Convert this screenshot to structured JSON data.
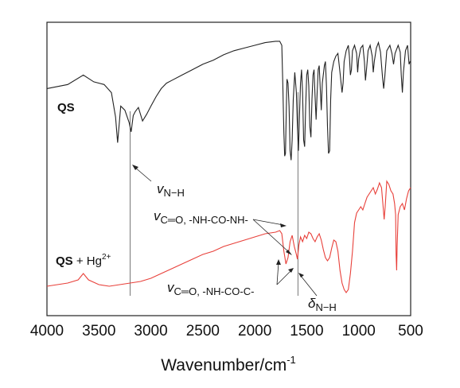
{
  "chart_data": {
    "type": "line",
    "xlabel": "Wavenumber/cm",
    "xlabel_superscript": "-1",
    "x_reversed": true,
    "xlim": [
      4000,
      500
    ],
    "xticks": [
      "4000",
      "3500",
      "3000",
      "2500",
      "2000",
      "1500",
      "1000",
      "500"
    ],
    "yticks_shown": false,
    "series": [
      {
        "name_bold": "QS",
        "name_rest": "",
        "color": "#222222",
        "points": [
          [
            4000,
            0.58
          ],
          [
            3800,
            0.61
          ],
          [
            3650,
            0.68
          ],
          [
            3550,
            0.63
          ],
          [
            3450,
            0.61
          ],
          [
            3380,
            0.55
          ],
          [
            3340,
            0.37
          ],
          [
            3320,
            0.18
          ],
          [
            3290,
            0.45
          ],
          [
            3250,
            0.42
          ],
          [
            3210,
            0.33
          ],
          [
            3190,
            0.26
          ],
          [
            3170,
            0.38
          ],
          [
            3150,
            0.41
          ],
          [
            3120,
            0.44
          ],
          [
            3080,
            0.34
          ],
          [
            3040,
            0.39
          ],
          [
            3000,
            0.45
          ],
          [
            2950,
            0.52
          ],
          [
            2900,
            0.58
          ],
          [
            2850,
            0.62
          ],
          [
            2800,
            0.64
          ],
          [
            2700,
            0.68
          ],
          [
            2600,
            0.72
          ],
          [
            2500,
            0.76
          ],
          [
            2400,
            0.79
          ],
          [
            2300,
            0.83
          ],
          [
            2200,
            0.86
          ],
          [
            2100,
            0.88
          ],
          [
            2000,
            0.9
          ],
          [
            1900,
            0.92
          ],
          [
            1800,
            0.93
          ],
          [
            1760,
            0.93
          ],
          [
            1740,
            0.9
          ],
          [
            1730,
            0.6
          ],
          [
            1720,
            0.25
          ],
          [
            1712,
            0.08
          ],
          [
            1705,
            0.1
          ],
          [
            1695,
            0.5
          ],
          [
            1690,
            0.65
          ],
          [
            1680,
            0.62
          ],
          [
            1670,
            0.45
          ],
          [
            1660,
            0.12
          ],
          [
            1650,
            0.05
          ],
          [
            1640,
            0.2
          ],
          [
            1630,
            0.5
          ],
          [
            1615,
            0.7
          ],
          [
            1600,
            0.55
          ],
          [
            1590,
            0.3
          ],
          [
            1580,
            0.12
          ],
          [
            1570,
            0.38
          ],
          [
            1560,
            0.62
          ],
          [
            1550,
            0.72
          ],
          [
            1540,
            0.55
          ],
          [
            1530,
            0.2
          ],
          [
            1520,
            0.15
          ],
          [
            1510,
            0.45
          ],
          [
            1500,
            0.68
          ],
          [
            1490,
            0.72
          ],
          [
            1480,
            0.6
          ],
          [
            1470,
            0.3
          ],
          [
            1460,
            0.22
          ],
          [
            1450,
            0.5
          ],
          [
            1440,
            0.68
          ],
          [
            1430,
            0.72
          ],
          [
            1420,
            0.52
          ],
          [
            1410,
            0.35
          ],
          [
            1400,
            0.55
          ],
          [
            1390,
            0.72
          ],
          [
            1380,
            0.75
          ],
          [
            1370,
            0.58
          ],
          [
            1360,
            0.42
          ],
          [
            1350,
            0.62
          ],
          [
            1330,
            0.75
          ],
          [
            1320,
            0.78
          ],
          [
            1310,
            0.6
          ],
          [
            1300,
            0.3
          ],
          [
            1290,
            0.1
          ],
          [
            1280,
            0.12
          ],
          [
            1270,
            0.5
          ],
          [
            1260,
            0.7
          ],
          [
            1240,
            0.78
          ],
          [
            1220,
            0.82
          ],
          [
            1200,
            0.84
          ],
          [
            1180,
            0.7
          ],
          [
            1160,
            0.55
          ],
          [
            1150,
            0.62
          ],
          [
            1140,
            0.78
          ],
          [
            1120,
            0.86
          ],
          [
            1100,
            0.9
          ],
          [
            1090,
            0.82
          ],
          [
            1080,
            0.68
          ],
          [
            1070,
            0.72
          ],
          [
            1060,
            0.86
          ],
          [
            1040,
            0.9
          ],
          [
            1020,
            0.84
          ],
          [
            1010,
            0.7
          ],
          [
            1000,
            0.8
          ],
          [
            980,
            0.88
          ],
          [
            960,
            0.9
          ],
          [
            945,
            0.78
          ],
          [
            935,
            0.64
          ],
          [
            925,
            0.72
          ],
          [
            910,
            0.86
          ],
          [
            890,
            0.9
          ],
          [
            870,
            0.82
          ],
          [
            860,
            0.7
          ],
          [
            850,
            0.78
          ],
          [
            830,
            0.88
          ],
          [
            810,
            0.92
          ],
          [
            790,
            0.85
          ],
          [
            770,
            0.66
          ],
          [
            760,
            0.58
          ],
          [
            750,
            0.66
          ],
          [
            730,
            0.86
          ],
          [
            700,
            0.9
          ],
          [
            680,
            0.84
          ],
          [
            665,
            0.76
          ],
          [
            650,
            0.84
          ],
          [
            620,
            0.9
          ],
          [
            600,
            0.85
          ],
          [
            590,
            0.68
          ],
          [
            580,
            0.55
          ],
          [
            570,
            0.7
          ],
          [
            550,
            0.86
          ],
          [
            530,
            0.9
          ],
          [
            515,
            0.76
          ],
          [
            505,
            0.78
          ],
          [
            500,
            0.78
          ]
        ]
      },
      {
        "name_bold": "QS",
        "name_rest": " + Hg",
        "name_superscript": "2+",
        "color": "#e8403a",
        "points": [
          [
            4000,
            0.1
          ],
          [
            3800,
            0.12
          ],
          [
            3700,
            0.14
          ],
          [
            3650,
            0.18
          ],
          [
            3600,
            0.14
          ],
          [
            3500,
            0.11
          ],
          [
            3400,
            0.1
          ],
          [
            3300,
            0.11
          ],
          [
            3200,
            0.12
          ],
          [
            3100,
            0.13
          ],
          [
            3000,
            0.15
          ],
          [
            2900,
            0.18
          ],
          [
            2800,
            0.21
          ],
          [
            2700,
            0.24
          ],
          [
            2600,
            0.27
          ],
          [
            2500,
            0.3
          ],
          [
            2400,
            0.32
          ],
          [
            2300,
            0.35
          ],
          [
            2200,
            0.37
          ],
          [
            2100,
            0.39
          ],
          [
            2000,
            0.41
          ],
          [
            1900,
            0.43
          ],
          [
            1800,
            0.44
          ],
          [
            1760,
            0.45
          ],
          [
            1740,
            0.43
          ],
          [
            1720,
            0.32
          ],
          [
            1700,
            0.24
          ],
          [
            1680,
            0.28
          ],
          [
            1660,
            0.38
          ],
          [
            1640,
            0.42
          ],
          [
            1620,
            0.35
          ],
          [
            1600,
            0.3
          ],
          [
            1590,
            0.27
          ],
          [
            1575,
            0.36
          ],
          [
            1560,
            0.41
          ],
          [
            1540,
            0.38
          ],
          [
            1520,
            0.42
          ],
          [
            1500,
            0.4
          ],
          [
            1480,
            0.44
          ],
          [
            1460,
            0.43
          ],
          [
            1440,
            0.4
          ],
          [
            1420,
            0.38
          ],
          [
            1400,
            0.41
          ],
          [
            1380,
            0.43
          ],
          [
            1360,
            0.39
          ],
          [
            1340,
            0.33
          ],
          [
            1320,
            0.28
          ],
          [
            1300,
            0.26
          ],
          [
            1280,
            0.28
          ],
          [
            1260,
            0.34
          ],
          [
            1240,
            0.39
          ],
          [
            1220,
            0.38
          ],
          [
            1200,
            0.32
          ],
          [
            1180,
            0.2
          ],
          [
            1160,
            0.12
          ],
          [
            1140,
            0.08
          ],
          [
            1120,
            0.06
          ],
          [
            1100,
            0.08
          ],
          [
            1080,
            0.18
          ],
          [
            1060,
            0.32
          ],
          [
            1040,
            0.5
          ],
          [
            1020,
            0.56
          ],
          [
            1000,
            0.58
          ],
          [
            980,
            0.6
          ],
          [
            960,
            0.58
          ],
          [
            940,
            0.62
          ],
          [
            920,
            0.66
          ],
          [
            900,
            0.68
          ],
          [
            880,
            0.7
          ],
          [
            860,
            0.72
          ],
          [
            840,
            0.68
          ],
          [
            820,
            0.71
          ],
          [
            800,
            0.75
          ],
          [
            780,
            0.72
          ],
          [
            765,
            0.6
          ],
          [
            755,
            0.52
          ],
          [
            745,
            0.6
          ],
          [
            730,
            0.76
          ],
          [
            710,
            0.74
          ],
          [
            690,
            0.7
          ],
          [
            670,
            0.68
          ],
          [
            655,
            0.62
          ],
          [
            645,
            0.55
          ],
          [
            640,
            0.3
          ],
          [
            635,
            0.2
          ],
          [
            630,
            0.35
          ],
          [
            620,
            0.55
          ],
          [
            600,
            0.6
          ],
          [
            580,
            0.62
          ],
          [
            560,
            0.58
          ],
          [
            540,
            0.65
          ],
          [
            520,
            0.7
          ],
          [
            500,
            0.72
          ]
        ]
      }
    ],
    "reference_lines_x": [
      3200,
      1585
    ],
    "annotations": [
      {
        "symbol": "v",
        "subscript": "N−H"
      },
      {
        "symbol": "v",
        "subscript": "C═O, -NH-CO-NH-"
      },
      {
        "symbol": "v",
        "subscript": "C═O, -NH-CO-C-"
      },
      {
        "symbol": "δ",
        "subscript": "N−H"
      }
    ]
  }
}
